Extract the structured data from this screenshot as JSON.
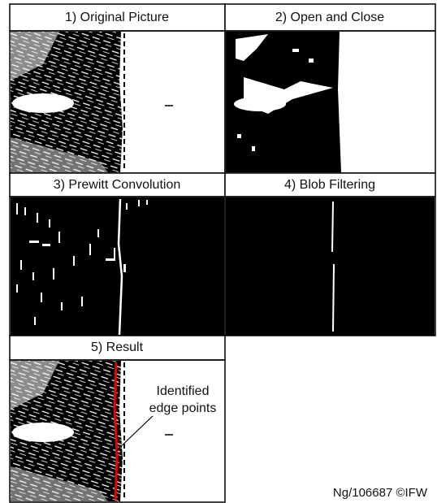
{
  "panels": [
    {
      "title": "1) Original Picture"
    },
    {
      "title": "2) Open and Close"
    },
    {
      "title": "3) Prewitt Convolution"
    },
    {
      "title": "4) Blob Filtering"
    },
    {
      "title": "5) Result"
    }
  ],
  "annotation": "Identified edge points",
  "credit": "Ng/106687 ©IFW"
}
